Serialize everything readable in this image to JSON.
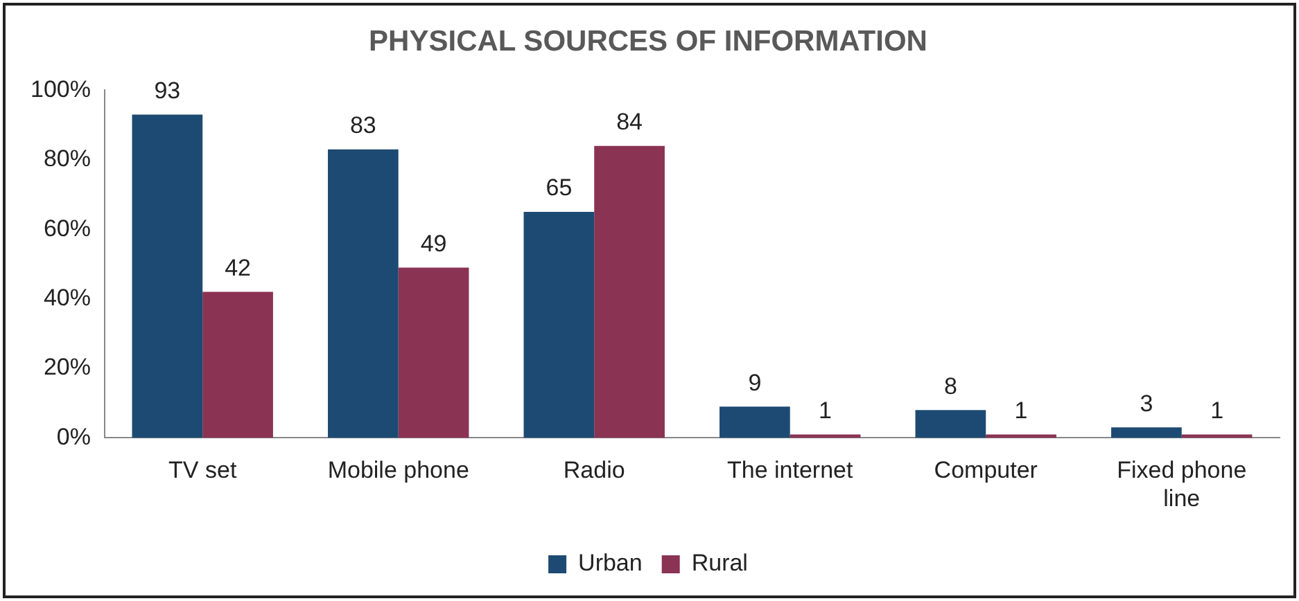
{
  "chart_data": {
    "type": "bar",
    "title": "PHYSICAL SOURCES OF INFORMATION",
    "categories": [
      "TV set",
      "Mobile phone",
      "Radio",
      "The internet",
      "Computer",
      "Fixed phone line"
    ],
    "series": [
      {
        "name": "Urban",
        "color": "#1d4a72",
        "values": [
          93,
          83,
          65,
          9,
          8,
          3
        ]
      },
      {
        "name": "Rural",
        "color": "#8a3352",
        "values": [
          42,
          49,
          84,
          1,
          1,
          1
        ]
      }
    ],
    "ylim": [
      0,
      100
    ],
    "yticks": [
      {
        "value": 0,
        "label": "0%"
      },
      {
        "value": 20,
        "label": "20%"
      },
      {
        "value": 40,
        "label": "40%"
      },
      {
        "value": 60,
        "label": "60%"
      },
      {
        "value": 80,
        "label": "80%"
      },
      {
        "value": 100,
        "label": "100%"
      }
    ],
    "grid": false,
    "legend": "bottom",
    "data_labels": true
  }
}
